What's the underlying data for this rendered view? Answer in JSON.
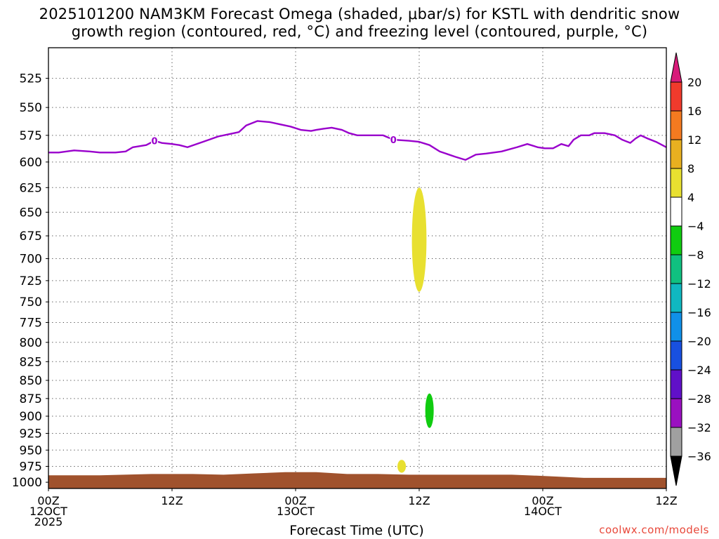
{
  "title": {
    "line1": "2025101200 NAM3KM Forecast Omega (shaded, μbar/s) for KSTL with dendritic snow",
    "line2": "growth region (contoured, red, °C) and freezing level (contoured, purple, °C)"
  },
  "credit": "coolwx.com/models",
  "chart_data": {
    "type": "area",
    "title": "2025101200 NAM3KM Forecast Omega (shaded, μbar/s) for KSTL with dendritic snow growth region (contoured, red, °C) and freezing level (contoured, purple, °C)",
    "xlabel": "Forecast Time (UTC)",
    "ylabel": "",
    "x_unit": "hours",
    "xlim": [
      0,
      60
    ],
    "ylim": [
      1010,
      500
    ],
    "y_scale": "log-pressure",
    "y_ticks": [
      525,
      550,
      575,
      600,
      625,
      650,
      675,
      700,
      725,
      750,
      775,
      800,
      825,
      850,
      875,
      900,
      925,
      950,
      975,
      1000
    ],
    "x_ticks": [
      {
        "x": 0,
        "lines": [
          "00Z",
          "12OCT",
          "2025"
        ]
      },
      {
        "x": 12,
        "lines": [
          "12Z",
          "",
          ""
        ]
      },
      {
        "x": 24,
        "lines": [
          "00Z",
          "13OCT",
          ""
        ]
      },
      {
        "x": 36,
        "lines": [
          "12Z",
          "",
          ""
        ]
      },
      {
        "x": 48,
        "lines": [
          "00Z",
          "14OCT",
          ""
        ]
      },
      {
        "x": 60,
        "lines": [
          "12Z",
          "",
          ""
        ]
      }
    ],
    "grid": true,
    "colorbar": {
      "labels": [
        "20",
        "16",
        "12",
        "8",
        "4",
        "-4",
        "-8",
        "-12",
        "-16",
        "-20",
        "-24",
        "-28",
        "-32",
        "-36"
      ],
      "colors": [
        "#d81b7a",
        "#f03a2c",
        "#f47a20",
        "#e8b020",
        "#e8e030",
        "#ffffff",
        "#10cc10",
        "#10c080",
        "#10b8c0",
        "#1090e8",
        "#1850e0",
        "#6010c8",
        "#9a10c0",
        "#a0a0a0",
        "#000000"
      ]
    },
    "freezing_level": {
      "color": "#9900cc",
      "label": "0",
      "x": [
        0,
        1,
        2.5,
        4,
        5,
        6.5,
        7.5,
        8.2,
        9.5,
        10.3,
        11,
        12,
        12.7,
        13.5,
        15,
        16.5,
        17.5,
        18.5,
        19.2,
        20.3,
        21.5,
        22.5,
        23.5,
        24.5,
        25.5,
        26,
        26.7,
        27.5,
        28.5,
        29.2,
        30,
        31,
        32.5,
        33.5,
        35,
        36,
        37,
        38,
        39.5,
        40.5,
        41.5,
        42.5,
        44,
        45.5,
        46.5,
        47.5,
        48.2,
        49,
        49.8,
        50.5,
        51,
        51.7,
        52.5,
        53,
        54,
        55,
        55.7,
        56.5,
        57,
        57.5,
        58.2,
        59,
        60
      ],
      "y": [
        591,
        591,
        589,
        590,
        591,
        591,
        590,
        586,
        584,
        580,
        582,
        583,
        584,
        586,
        581,
        576,
        574,
        572,
        566,
        562,
        563,
        565,
        567,
        570,
        571,
        570,
        569,
        568,
        570,
        573,
        575,
        575,
        575,
        579,
        580,
        581,
        584,
        590,
        595,
        598,
        593,
        592,
        590,
        586,
        583,
        586,
        587,
        587,
        583,
        585,
        579,
        575,
        575,
        573,
        573,
        575,
        579,
        582,
        578,
        575,
        578,
        581,
        586
      ]
    },
    "omega_regions": [
      {
        "value_range": [
          4,
          8
        ],
        "color": "#e8e030",
        "x_center": 36.0,
        "y_range": [
          625,
          738
        ]
      },
      {
        "value_range": [
          4,
          8
        ],
        "color": "#e8e030",
        "x_center": 34.3,
        "y_range": [
          965,
          985
        ]
      },
      {
        "value_range": [
          -8,
          -4
        ],
        "color": "#10cc10",
        "x_center": 37.0,
        "y_range": [
          868,
          917
        ]
      }
    ],
    "terrain": {
      "color": "#a0522d",
      "x": [
        0,
        5,
        10,
        14,
        17,
        20,
        23,
        26,
        29,
        32,
        35,
        40,
        42,
        45,
        48,
        52,
        55,
        58,
        60
      ],
      "y": [
        989,
        989,
        987,
        987,
        988,
        986,
        984,
        984,
        987,
        987,
        988,
        988,
        988,
        988,
        990,
        993,
        993,
        993,
        993
      ]
    }
  }
}
